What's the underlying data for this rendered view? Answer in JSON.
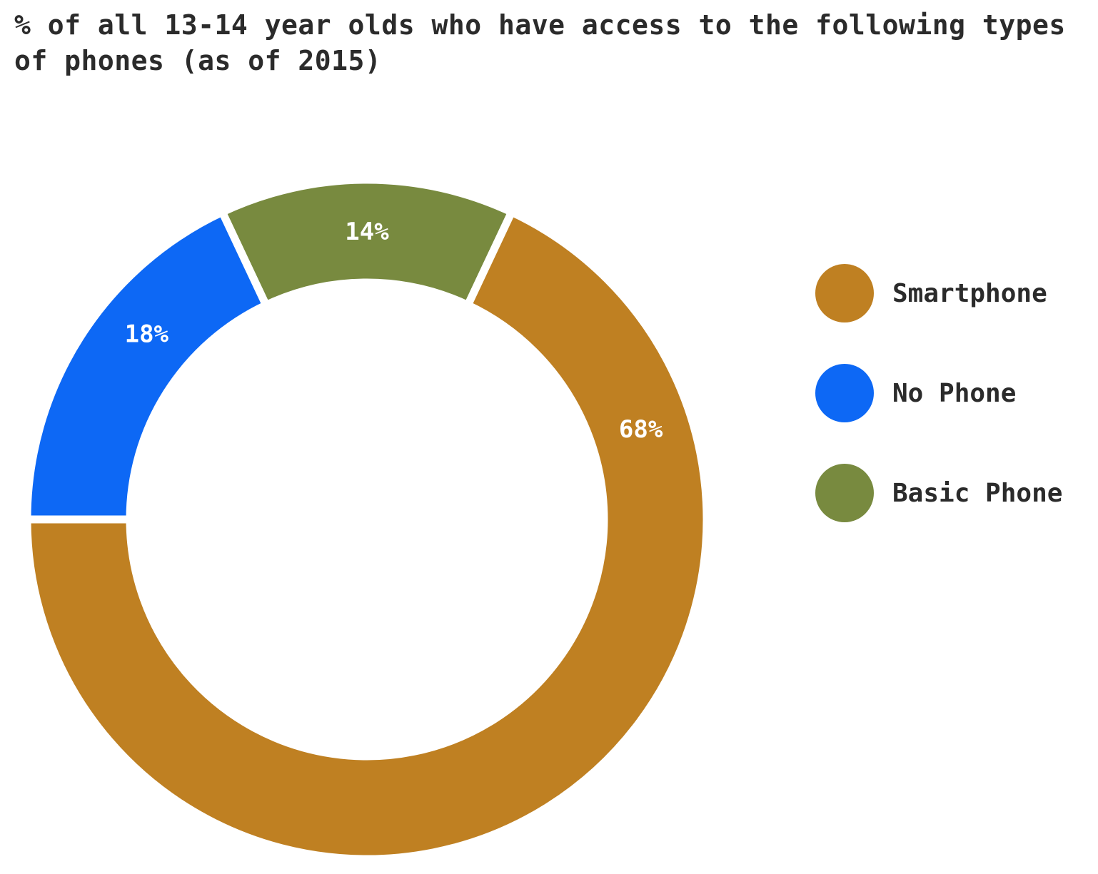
{
  "title": "% of all 13-14 year olds who have access to the following types of phones (as of 2015)",
  "chart_data": {
    "type": "pie",
    "donut": true,
    "title": "% of all 13-14 year olds who have access to the following types of phones (as of 2015)",
    "slices": [
      {
        "label": "Smartphone",
        "value": 68,
        "display": "68%",
        "color": "#bf8022"
      },
      {
        "label": "No Phone",
        "value": 18,
        "display": "18%",
        "color": "#0d68f5"
      },
      {
        "label": "Basic Phone",
        "value": 14,
        "display": "14%",
        "color": "#788a3f"
      }
    ],
    "legend": "right"
  },
  "legend": [
    {
      "label": "Smartphone",
      "color": "#bf8022"
    },
    {
      "label": "No Phone",
      "color": "#0d68f5"
    },
    {
      "label": "Basic Phone",
      "color": "#788a3f"
    }
  ]
}
